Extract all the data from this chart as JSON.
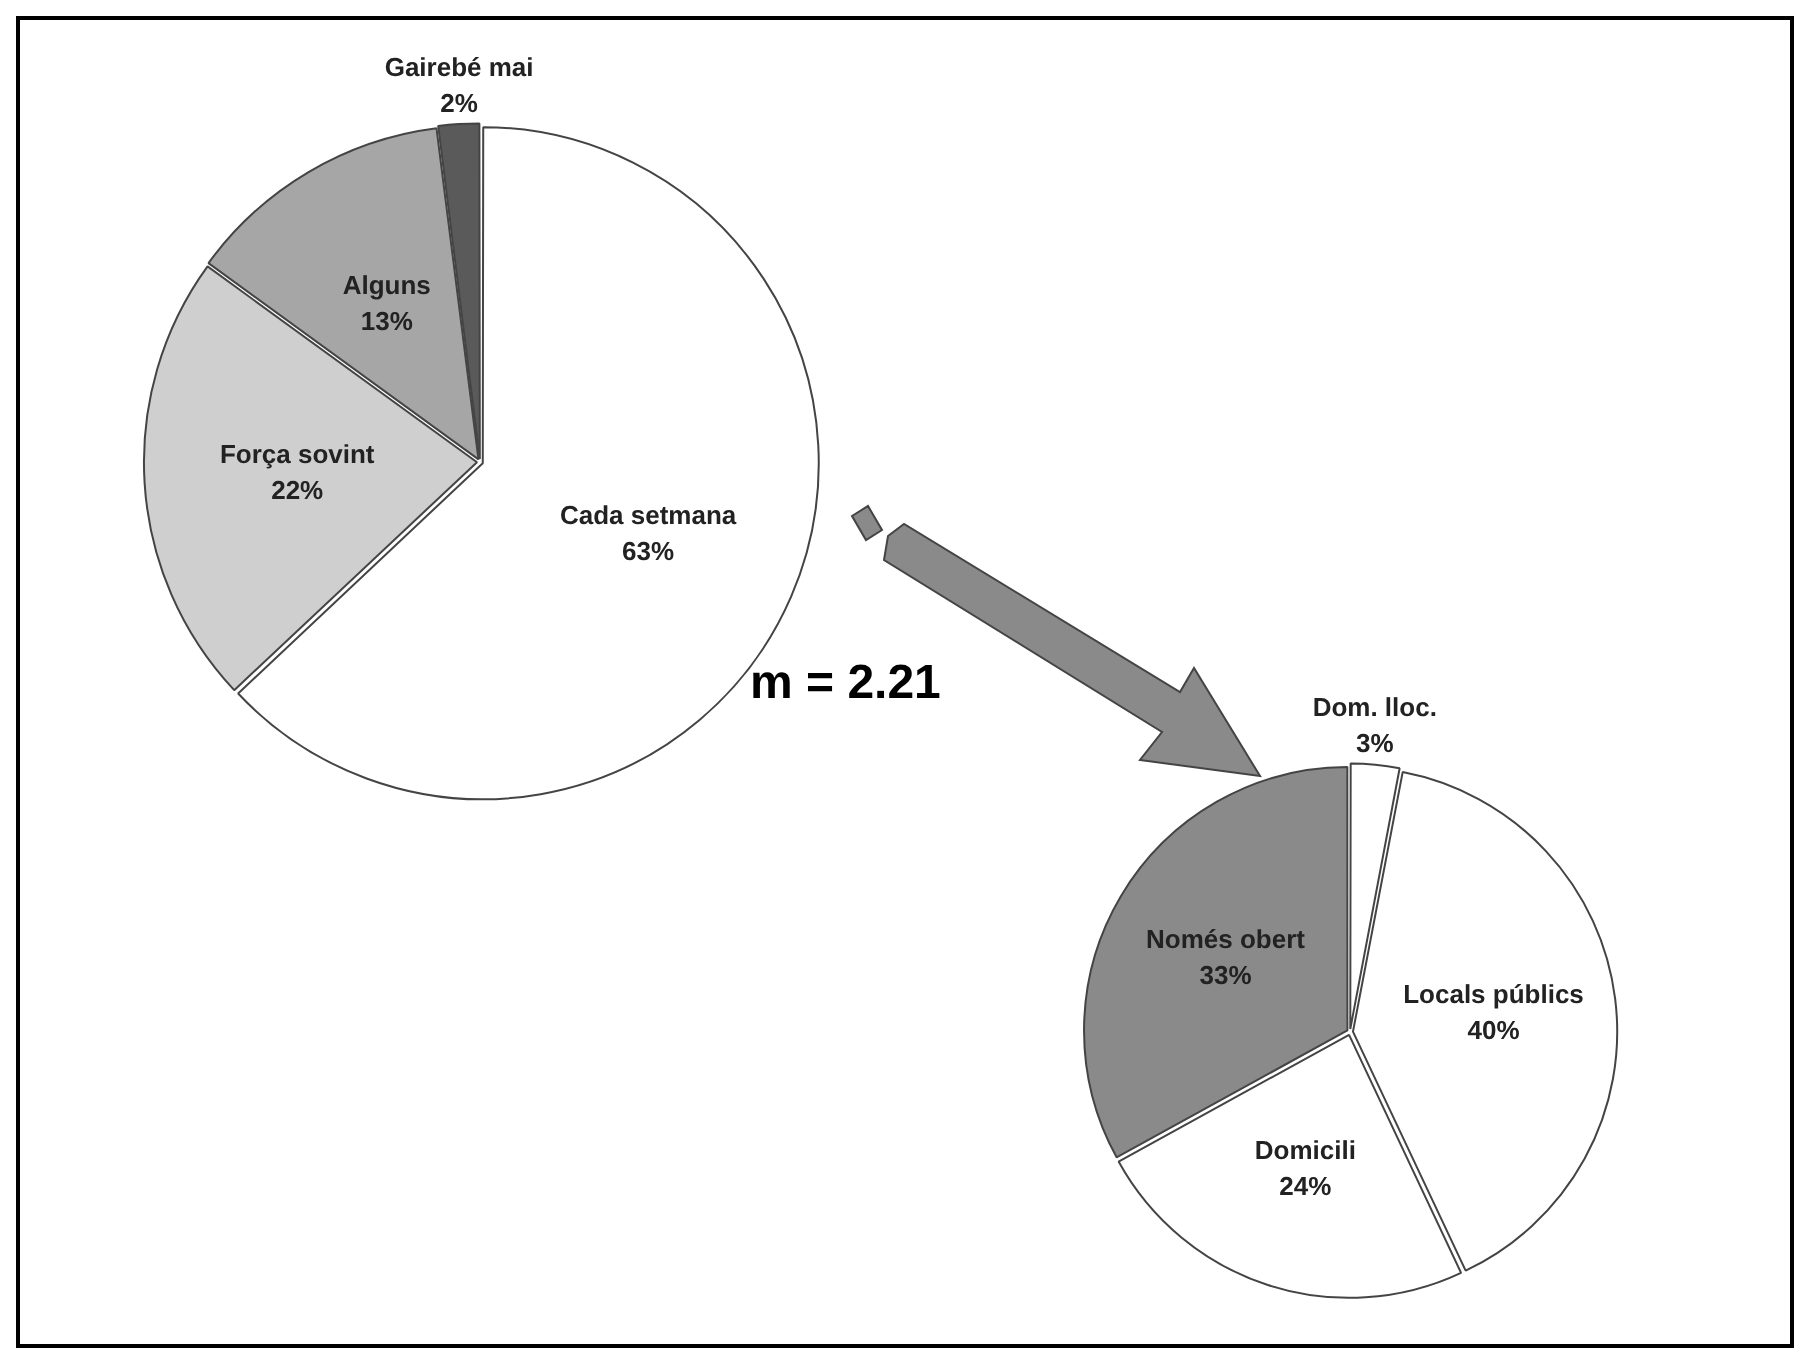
{
  "chart_data": [
    {
      "type": "pie",
      "categories": [
        "Cada setmana",
        "Força sovint",
        "Alguns",
        "Gairebé mai"
      ],
      "values": [
        63,
        22,
        13,
        2
      ],
      "value_labels": [
        "63%",
        "22%",
        "13%",
        "2%"
      ],
      "colors": [
        "#ffffff",
        "#cfcfcf",
        "#a6a6a6",
        "#5a5a5a"
      ],
      "legend": false,
      "annotations": [
        "m = 2.21"
      ]
    },
    {
      "type": "pie",
      "categories": [
        "Dom. lloc.",
        "Locals públics",
        "Domicili",
        "Només obert"
      ],
      "values": [
        3,
        40,
        24,
        33
      ],
      "value_labels": [
        "3%",
        "40%",
        "24%",
        "33%"
      ],
      "colors": [
        "#ffffff",
        "#ffffff",
        "#ffffff",
        "#8a8a8a"
      ],
      "legend": false
    }
  ]
}
